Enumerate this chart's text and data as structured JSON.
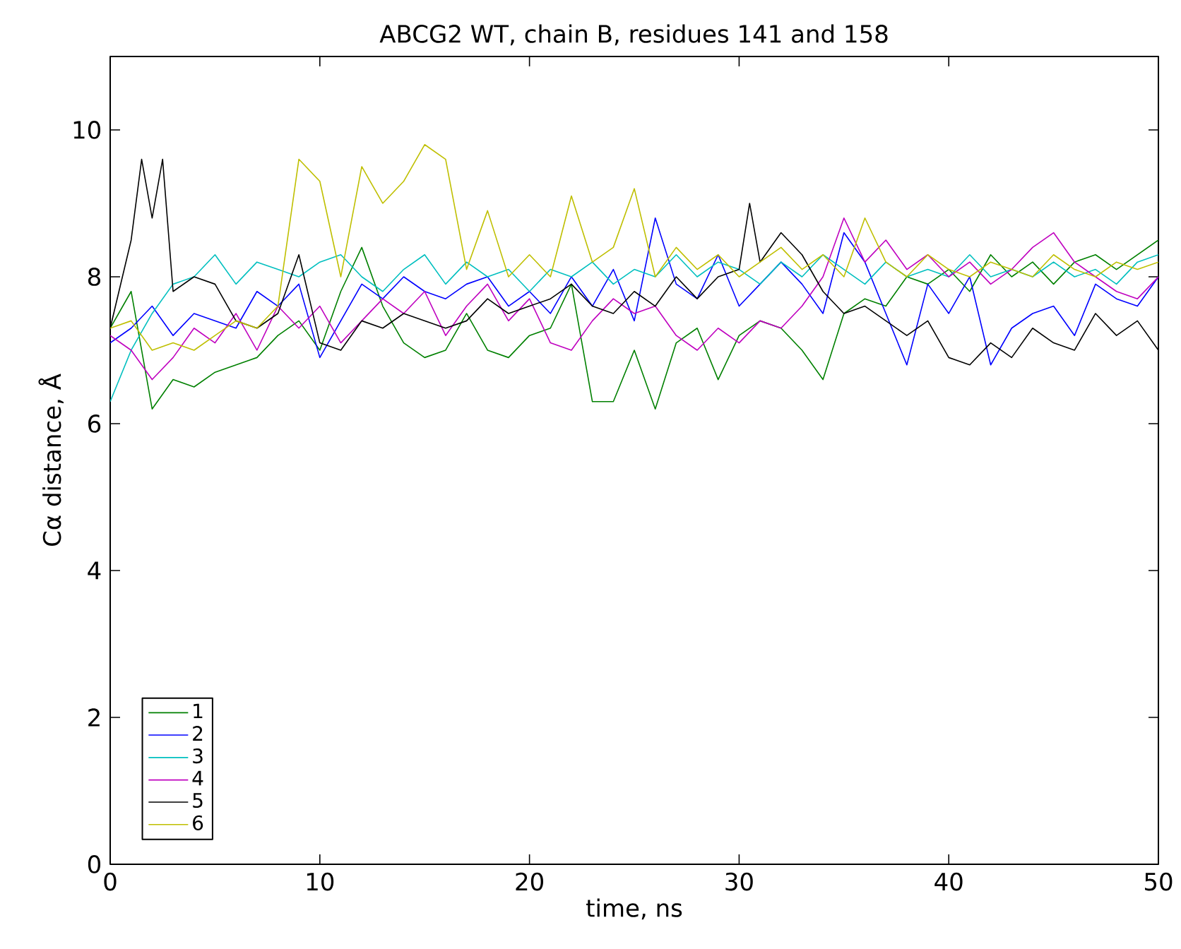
{
  "chart_data": {
    "type": "line",
    "title": "ABCG2 WT, chain B, residues 141 and 158",
    "xlabel": "time, ns",
    "ylabel": "Cα distance, Å",
    "xlim": [
      0,
      50
    ],
    "ylim": [
      0,
      11
    ],
    "xticks": [
      0,
      10,
      20,
      30,
      40,
      50
    ],
    "yticks": [
      0,
      2,
      4,
      6,
      8,
      10
    ],
    "legend": "bottom left",
    "marker": "none",
    "line_style": "solid",
    "x": [
      0,
      1,
      2,
      3,
      4,
      5,
      6,
      7,
      8,
      9,
      10,
      11,
      12,
      13,
      14,
      15,
      16,
      17,
      18,
      19,
      20,
      21,
      22,
      23,
      24,
      25,
      26,
      27,
      28,
      29,
      30,
      31,
      32,
      33,
      34,
      35,
      36,
      37,
      38,
      39,
      40,
      41,
      42,
      43,
      44,
      45,
      46,
      47,
      48,
      49,
      50
    ],
    "series": [
      {
        "name": "1",
        "color": "#008000",
        "values": [
          7.3,
          7.8,
          6.2,
          6.6,
          6.5,
          6.7,
          6.8,
          6.9,
          7.2,
          7.4,
          7.0,
          7.8,
          8.4,
          7.6,
          7.1,
          6.9,
          7.0,
          7.5,
          7.0,
          6.9,
          7.2,
          7.3,
          7.9,
          6.3,
          6.3,
          7.0,
          6.2,
          7.1,
          7.3,
          6.6,
          7.2,
          7.4,
          7.3,
          7.0,
          6.6,
          7.5,
          7.7,
          7.6,
          8.0,
          7.9,
          8.1,
          7.8,
          8.3,
          8.0,
          8.2,
          7.9,
          8.2,
          8.3,
          8.1,
          8.3,
          8.5
        ]
      },
      {
        "name": "2",
        "color": "#0000ff",
        "values": [
          7.1,
          7.3,
          7.6,
          7.2,
          7.5,
          7.4,
          7.3,
          7.8,
          7.6,
          7.9,
          6.9,
          7.4,
          7.9,
          7.7,
          8.0,
          7.8,
          7.7,
          7.9,
          8.0,
          7.6,
          7.8,
          7.5,
          8.0,
          7.6,
          8.1,
          7.4,
          8.8,
          7.9,
          7.7,
          8.3,
          7.6,
          7.9,
          8.2,
          7.9,
          7.5,
          8.6,
          8.2,
          7.5,
          6.8,
          7.9,
          7.5,
          8.0,
          6.8,
          7.3,
          7.5,
          7.6,
          7.2,
          7.9,
          7.7,
          7.6,
          8.0
        ]
      },
      {
        "name": "3",
        "color": "#00bfbf",
        "values": [
          6.3,
          7.0,
          7.5,
          7.9,
          8.0,
          8.3,
          7.9,
          8.2,
          8.1,
          8.0,
          8.2,
          8.3,
          8.0,
          7.8,
          8.1,
          8.3,
          7.9,
          8.2,
          8.0,
          8.1,
          7.8,
          8.1,
          8.0,
          8.2,
          7.9,
          8.1,
          8.0,
          8.3,
          8.0,
          8.2,
          8.1,
          7.9,
          8.2,
          8.0,
          8.3,
          8.1,
          7.9,
          8.2,
          8.0,
          8.1,
          8.0,
          8.3,
          8.0,
          8.1,
          8.0,
          8.2,
          8.0,
          8.1,
          7.9,
          8.2,
          8.3
        ]
      },
      {
        "name": "4",
        "color": "#bf00bf",
        "values": [
          7.2,
          7.0,
          6.6,
          6.9,
          7.3,
          7.1,
          7.5,
          7.0,
          7.6,
          7.3,
          7.6,
          7.1,
          7.4,
          7.7,
          7.5,
          7.8,
          7.2,
          7.6,
          7.9,
          7.4,
          7.7,
          7.1,
          7.0,
          7.4,
          7.7,
          7.5,
          7.6,
          7.2,
          7.0,
          7.3,
          7.1,
          7.4,
          7.3,
          7.6,
          8.0,
          8.8,
          8.2,
          8.5,
          8.1,
          8.3,
          8.0,
          8.2,
          7.9,
          8.1,
          8.4,
          8.6,
          8.2,
          8.0,
          7.8,
          7.7,
          8.0
        ]
      },
      {
        "name": "5",
        "color": "#000000",
        "x": [
          0,
          1,
          1.5,
          2,
          2.5,
          3,
          4,
          5,
          6,
          7,
          8,
          9,
          10,
          11,
          12,
          13,
          14,
          15,
          16,
          17,
          18,
          19,
          20,
          21,
          22,
          23,
          24,
          25,
          26,
          27,
          28,
          29,
          30,
          30.5,
          31,
          32,
          33,
          34,
          35,
          36,
          37,
          38,
          39,
          40,
          41,
          42,
          43,
          44,
          45,
          46,
          47,
          48,
          49,
          50
        ],
        "values": [
          7.3,
          8.5,
          9.6,
          8.8,
          9.6,
          7.8,
          8.0,
          7.9,
          7.4,
          7.3,
          7.5,
          8.3,
          7.1,
          7.0,
          7.4,
          7.3,
          7.5,
          7.4,
          7.3,
          7.4,
          7.7,
          7.5,
          7.6,
          7.7,
          7.9,
          7.6,
          7.5,
          7.8,
          7.6,
          8.0,
          7.7,
          8.0,
          8.1,
          9.0,
          8.2,
          8.6,
          8.3,
          7.8,
          7.5,
          7.6,
          7.4,
          7.2,
          7.4,
          6.9,
          6.8,
          7.1,
          6.9,
          7.3,
          7.1,
          7.0,
          7.5,
          7.2,
          7.4,
          7.0
        ]
      },
      {
        "name": "6",
        "color": "#bfbf00",
        "values": [
          7.3,
          7.4,
          7.0,
          7.1,
          7.0,
          7.2,
          7.4,
          7.3,
          7.6,
          9.6,
          9.3,
          8.0,
          9.5,
          9.0,
          9.3,
          9.8,
          9.6,
          8.1,
          8.9,
          8.0,
          8.3,
          8.0,
          9.1,
          8.2,
          8.4,
          9.2,
          8.0,
          8.4,
          8.1,
          8.3,
          8.0,
          8.2,
          8.4,
          8.1,
          8.3,
          8.0,
          8.8,
          8.2,
          8.0,
          8.3,
          8.1,
          8.0,
          8.2,
          8.1,
          8.0,
          8.3,
          8.1,
          8.0,
          8.2,
          8.1,
          8.2
        ]
      }
    ]
  }
}
